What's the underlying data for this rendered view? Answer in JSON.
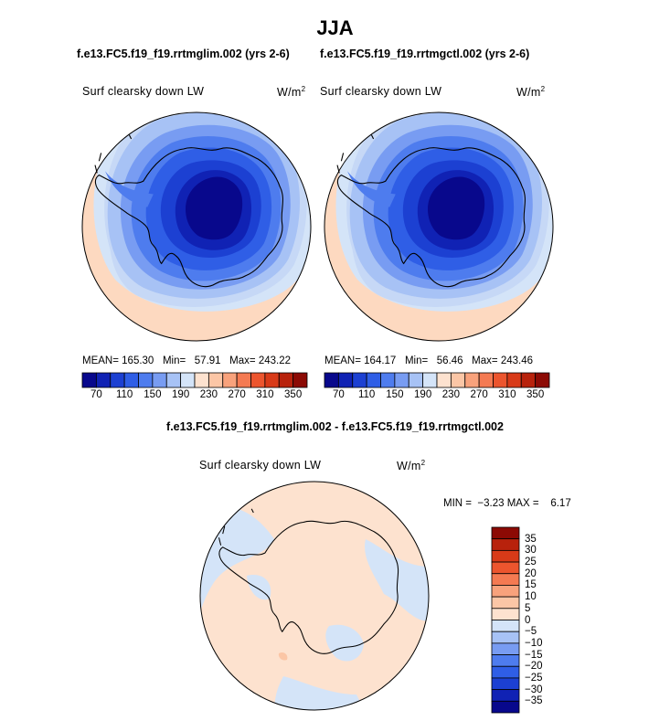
{
  "title": "JJA",
  "panels": [
    {
      "case": "f.e13.FC5.f19_f19.rrtmglim.002 (yrs 2-6)",
      "variable": "Surf clearsky down LW",
      "units": "W/m",
      "units_sup": "2",
      "stats": {
        "mean_label": "MEAN=",
        "mean": "165.30",
        "min_label": "Min=",
        "min": "57.91",
        "max_label": "Max=",
        "max": "243.22"
      }
    },
    {
      "case": "f.e13.FC5.f19_f19.rrtmgctl.002 (yrs 2-6)",
      "variable": "Surf clearsky down LW",
      "units": "W/m",
      "units_sup": "2",
      "stats": {
        "mean_label": "MEAN=",
        "mean": "164.17",
        "min_label": "Min=",
        "min": "56.46",
        "max_label": "Max=",
        "max": "243.46"
      }
    }
  ],
  "colorbar": {
    "labels": [
      "70",
      "110",
      "150",
      "190",
      "230",
      "270",
      "310",
      "350"
    ],
    "colors": [
      "#08088c",
      "#1022b4",
      "#1c40d2",
      "#2f5ee6",
      "#4e7cee",
      "#789cf2",
      "#a7c2f5",
      "#d4e4f8",
      "#fde2cf",
      "#fbc6a6",
      "#f8a27c",
      "#f47a52",
      "#ec552e",
      "#d83a18",
      "#b8220c",
      "#8c0a04"
    ]
  },
  "difference": {
    "title": "f.e13.FC5.f19_f19.rrtmglim.002 - f.e13.FC5.f19_f19.rrtmgctl.002",
    "variable": "Surf clearsky down LW",
    "units": "W/m",
    "units_sup": "2",
    "minmax": {
      "min_label": "MIN =",
      "min": "−3.23",
      "max_label": "MAX =",
      "max": "6.17"
    },
    "colorbar": {
      "labels": [
        "35",
        "30",
        "25",
        "20",
        "15",
        "10",
        "5",
        "0",
        "−5",
        "−10",
        "−15",
        "−20",
        "−25",
        "−30",
        "−35"
      ],
      "colors": [
        "#8c0a04",
        "#b8220c",
        "#d83a18",
        "#ec552e",
        "#f47a52",
        "#f8a27c",
        "#fbc6a6",
        "#fde2cf",
        "#d4e4f8",
        "#a7c2f5",
        "#789cf2",
        "#4e7cee",
        "#2f5ee6",
        "#1c40d2",
        "#1022b4",
        "#08088c"
      ]
    }
  }
}
